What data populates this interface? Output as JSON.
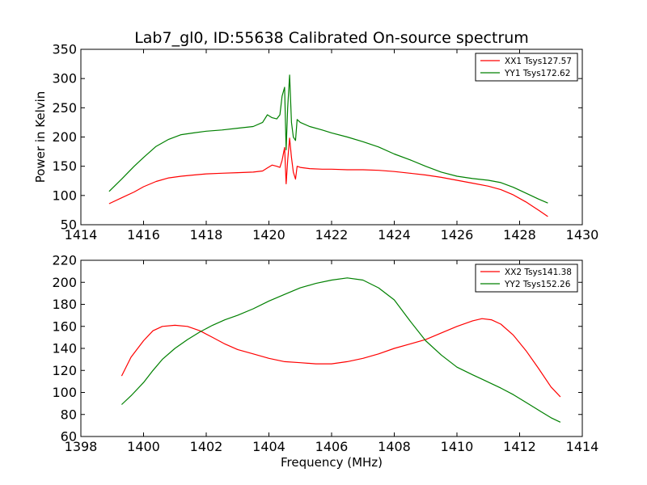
{
  "figure": {
    "title": "Lab7_gl0, ID:55638 Calibrated On-source spectrum",
    "colors": {
      "xx": "#ff0000",
      "yy": "#008000",
      "axes": "#000000",
      "background": "#ffffff"
    }
  },
  "chart_data": [
    {
      "type": "line",
      "title": "Lab7_gl0, ID:55638 Calibrated On-source spectrum",
      "xlabel": "",
      "ylabel": "Power in Kelvin",
      "xlim": [
        1414,
        1430
      ],
      "ylim": [
        50,
        350
      ],
      "xticks": [
        1414,
        1416,
        1418,
        1420,
        1422,
        1424,
        1426,
        1428,
        1430
      ],
      "yticks": [
        50,
        100,
        150,
        200,
        250,
        300,
        350
      ],
      "grid": false,
      "legend_position": "top-right",
      "series": [
        {
          "name": "XX1 Tsys127.57",
          "color": "#ff0000",
          "x": [
            1414.9,
            1415.3,
            1415.7,
            1416.0,
            1416.4,
            1416.8,
            1417.2,
            1417.6,
            1418.0,
            1418.5,
            1419.0,
            1419.5,
            1419.8,
            1419.95,
            1420.1,
            1420.25,
            1420.35,
            1420.42,
            1420.5,
            1420.55,
            1420.6,
            1420.66,
            1420.72,
            1420.78,
            1420.85,
            1420.9,
            1421.0,
            1421.3,
            1421.7,
            1422.0,
            1422.5,
            1423.0,
            1423.5,
            1424.0,
            1424.5,
            1425.0,
            1425.5,
            1426.0,
            1426.5,
            1427.0,
            1427.4,
            1427.8,
            1428.2,
            1428.6,
            1428.9
          ],
          "values": [
            86,
            96,
            106,
            115,
            124,
            130,
            133,
            135,
            137,
            138,
            139,
            140,
            142,
            147,
            152,
            150,
            148,
            160,
            182,
            120,
            160,
            198,
            165,
            140,
            128,
            150,
            148,
            146,
            145,
            145,
            144,
            144,
            143,
            141,
            138,
            135,
            131,
            126,
            121,
            116,
            110,
            101,
            89,
            75,
            64
          ]
        },
        {
          "name": "YY1 Tsys172.62",
          "color": "#008000",
          "x": [
            1414.9,
            1415.3,
            1415.7,
            1416.0,
            1416.4,
            1416.8,
            1417.2,
            1417.6,
            1418.0,
            1418.5,
            1419.0,
            1419.5,
            1419.8,
            1419.95,
            1420.1,
            1420.25,
            1420.35,
            1420.42,
            1420.5,
            1420.55,
            1420.6,
            1420.66,
            1420.72,
            1420.78,
            1420.85,
            1420.9,
            1421.0,
            1421.3,
            1421.7,
            1422.0,
            1422.5,
            1423.0,
            1423.5,
            1424.0,
            1424.5,
            1425.0,
            1425.5,
            1426.0,
            1426.5,
            1427.0,
            1427.4,
            1427.8,
            1428.2,
            1428.6,
            1428.9
          ],
          "values": [
            107,
            128,
            150,
            165,
            184,
            196,
            204,
            207,
            210,
            212,
            215,
            218,
            225,
            238,
            233,
            231,
            238,
            270,
            285,
            178,
            250,
            306,
            225,
            200,
            194,
            230,
            225,
            218,
            212,
            207,
            200,
            192,
            183,
            171,
            161,
            150,
            140,
            133,
            129,
            126,
            122,
            114,
            104,
            94,
            87
          ]
        }
      ]
    },
    {
      "type": "line",
      "title": "",
      "xlabel": "Frequency (MHz)",
      "ylabel": "",
      "xlim": [
        1398,
        1414
      ],
      "ylim": [
        60,
        220
      ],
      "xticks": [
        1398,
        1400,
        1402,
        1404,
        1406,
        1408,
        1410,
        1412,
        1414
      ],
      "yticks": [
        60,
        80,
        100,
        120,
        140,
        160,
        180,
        200,
        220
      ],
      "grid": false,
      "legend_position": "top-right",
      "series": [
        {
          "name": "XX2 Tsys141.38",
          "color": "#ff0000",
          "x": [
            1399.3,
            1399.6,
            1400.0,
            1400.3,
            1400.6,
            1401.0,
            1401.4,
            1401.8,
            1402.2,
            1402.6,
            1403.0,
            1403.5,
            1404.0,
            1404.5,
            1405.0,
            1405.5,
            1406.0,
            1406.5,
            1407.0,
            1407.5,
            1408.0,
            1408.5,
            1409.0,
            1409.5,
            1410.0,
            1410.5,
            1410.8,
            1411.1,
            1411.4,
            1411.8,
            1412.2,
            1412.6,
            1413.0,
            1413.3
          ],
          "values": [
            115,
            132,
            147,
            156,
            160,
            161,
            160,
            156,
            150,
            144,
            139,
            135,
            131,
            128,
            127,
            126,
            126,
            128,
            131,
            135,
            140,
            144,
            148,
            154,
            160,
            165,
            167,
            166,
            162,
            152,
            138,
            122,
            105,
            96
          ]
        },
        {
          "name": "YY2 Tsys152.26",
          "color": "#008000",
          "x": [
            1399.3,
            1399.6,
            1400.0,
            1400.3,
            1400.6,
            1401.0,
            1401.4,
            1401.8,
            1402.2,
            1402.6,
            1403.0,
            1403.5,
            1404.0,
            1404.5,
            1405.0,
            1405.5,
            1406.0,
            1406.5,
            1407.0,
            1407.5,
            1408.0,
            1408.5,
            1409.0,
            1409.5,
            1410.0,
            1410.5,
            1410.8,
            1411.1,
            1411.4,
            1411.8,
            1412.2,
            1412.6,
            1413.0,
            1413.3
          ],
          "values": [
            89,
            97,
            109,
            120,
            130,
            140,
            148,
            155,
            161,
            166,
            170,
            176,
            183,
            189,
            195,
            199,
            202,
            204,
            202,
            195,
            184,
            165,
            147,
            134,
            123,
            116,
            112,
            108,
            104,
            98,
            91,
            84,
            77,
            73
          ]
        }
      ]
    }
  ]
}
